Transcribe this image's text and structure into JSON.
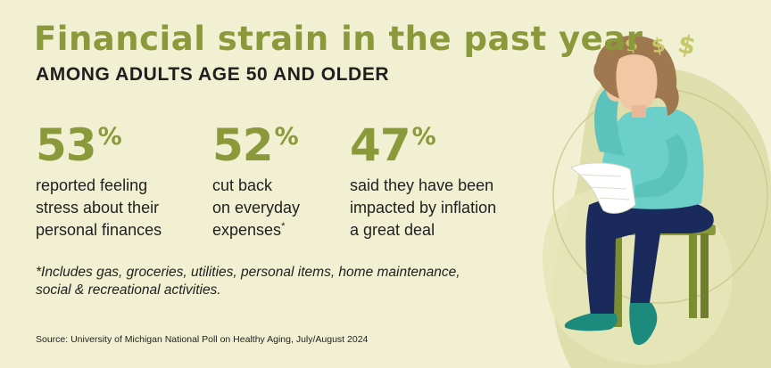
{
  "header": {
    "title": "Financial strain in the past year",
    "subtitle": "AMONG ADULTS AGE 50 AND OLDER"
  },
  "stats": [
    {
      "value": "53",
      "unit": "%",
      "lines": [
        "reported feeling",
        "stress about their",
        "personal finances"
      ]
    },
    {
      "value": "52",
      "unit": "%",
      "lines": [
        "cut back",
        "on everyday",
        "expenses"
      ],
      "marker": "*"
    },
    {
      "value": "47",
      "unit": "%",
      "lines": [
        "said they have been",
        "impacted by inflation",
        "a great deal"
      ]
    }
  ],
  "footnote": {
    "lines": [
      "*Includes gas, groceries, utilities, personal items, home maintenance,",
      "social & recreational activities."
    ]
  },
  "source": "Source: University of Michigan National Poll on Healthy Aging, July/August 2024",
  "illustration": {
    "dollar_signs": [
      "$",
      "$",
      "$"
    ],
    "colors": {
      "background": "#f2f0d3",
      "accent_green": "#8a9a3a",
      "blob": "#dcdba6",
      "hair": "#a07850",
      "skin": "#f2c8a4",
      "shirt": "#6ccfc9",
      "pants": "#1a2a5c",
      "shoes": "#1d8a7e",
      "stool": "#8a9a3a"
    }
  }
}
